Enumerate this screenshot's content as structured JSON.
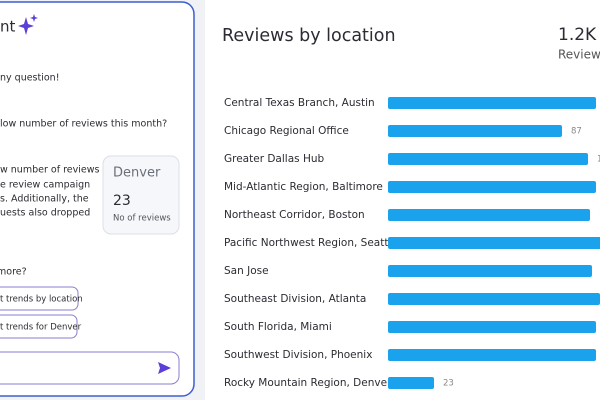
{
  "assistant": {
    "title": "nt",
    "messages": [
      "ny question!",
      "low number of reviews this month?"
    ],
    "answer_lines": [
      "w number of reviews",
      "e review campaign",
      "s. Additionally, the",
      "uests also dropped"
    ],
    "card": {
      "label": "Denver",
      "value": 23,
      "caption": "No of reviews"
    },
    "prompt": " more?",
    "suggestions": [
      "t trends by location",
      "t trends for Denver"
    ]
  },
  "reviews": {
    "title": "Reviews by location",
    "total": "1.2K",
    "total_label": "Review",
    "rows": [
      {
        "location": "Central Texas Branch, Austin",
        "value": 104
      },
      {
        "location": "Chicago Regional Office",
        "value": 87
      },
      {
        "location": "Greater Dallas Hub",
        "value": 100
      },
      {
        "location": "Mid-Atlantic Region, Baltimore",
        "value": 104
      },
      {
        "location": "Northeast Corridor, Boston",
        "value": 101
      },
      {
        "location": "Pacific Northwest Region, Seattle",
        "value": 107
      },
      {
        "location": "San Jose",
        "value": 102
      },
      {
        "location": "Southeast Division, Atlanta",
        "value": 106
      },
      {
        "location": "South Florida, Miami",
        "value": 104
      },
      {
        "location": "Southwest Division, Phoenix",
        "value": 104
      },
      {
        "location": "Rocky Mountain Region, Denver",
        "value": 23
      }
    ]
  }
}
